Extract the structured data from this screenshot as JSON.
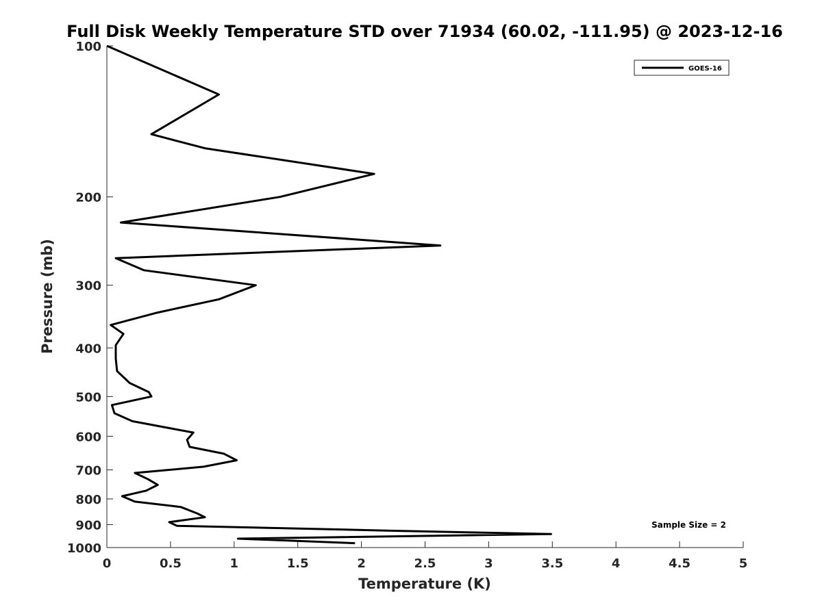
{
  "chart_data": {
    "type": "line",
    "title": "Full Disk Weekly Temperature STD over 71934 (60.02, -111.95) @ 2023-12-16",
    "xlabel": "Temperature (K)",
    "ylabel": "Pressure (mb)",
    "xlim": [
      0,
      5
    ],
    "ylim": [
      100,
      1000
    ],
    "y_scale": "log",
    "y_reversed": true,
    "x_ticks": [
      0,
      0.5,
      1,
      1.5,
      2,
      2.5,
      3,
      3.5,
      4,
      4.5,
      5
    ],
    "x_tick_labels": [
      "0",
      "0.5",
      "1",
      "1.5",
      "2",
      "2.5",
      "3",
      "3.5",
      "4",
      "4.5",
      "5"
    ],
    "y_ticks": [
      100,
      200,
      300,
      400,
      500,
      600,
      700,
      800,
      900,
      1000
    ],
    "y_tick_labels": [
      "100",
      "200",
      "300",
      "400",
      "500",
      "600",
      "700",
      "800",
      "900",
      "1000"
    ],
    "grid": false,
    "legend_position": "top-right",
    "annotation": "Sample Size = 2",
    "series": [
      {
        "name": "GOES-16",
        "color": "#000000",
        "points": [
          [
            0.0,
            100
          ],
          [
            0.88,
            125
          ],
          [
            0.35,
            150
          ],
          [
            0.77,
            160
          ],
          [
            2.1,
            180
          ],
          [
            1.36,
            200
          ],
          [
            0.11,
            225
          ],
          [
            2.62,
            250
          ],
          [
            0.07,
            265
          ],
          [
            0.29,
            280
          ],
          [
            1.17,
            300
          ],
          [
            0.88,
            320
          ],
          [
            0.4,
            340
          ],
          [
            0.03,
            360
          ],
          [
            0.13,
            375
          ],
          [
            0.07,
            395
          ],
          [
            0.07,
            420
          ],
          [
            0.08,
            445
          ],
          [
            0.18,
            470
          ],
          [
            0.33,
            490
          ],
          [
            0.35,
            500
          ],
          [
            0.04,
            520
          ],
          [
            0.06,
            540
          ],
          [
            0.2,
            560
          ],
          [
            0.68,
            590
          ],
          [
            0.63,
            610
          ],
          [
            0.65,
            630
          ],
          [
            0.92,
            650
          ],
          [
            1.02,
            670
          ],
          [
            0.76,
            690
          ],
          [
            0.22,
            710
          ],
          [
            0.32,
            730
          ],
          [
            0.4,
            750
          ],
          [
            0.31,
            770
          ],
          [
            0.12,
            790
          ],
          [
            0.22,
            810
          ],
          [
            0.58,
            830
          ],
          [
            0.71,
            855
          ],
          [
            0.77,
            870
          ],
          [
            0.49,
            890
          ],
          [
            0.55,
            905
          ],
          [
            2.2,
            925
          ],
          [
            3.49,
            940
          ],
          [
            1.03,
            960
          ],
          [
            1.95,
            980
          ]
        ]
      }
    ]
  }
}
